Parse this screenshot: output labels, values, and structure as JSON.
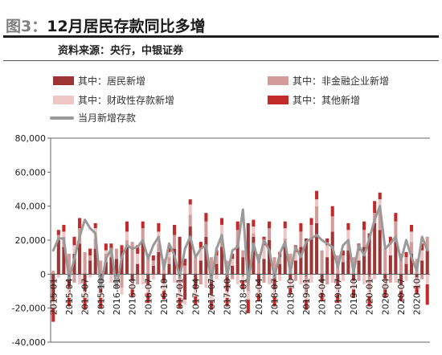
{
  "header": {
    "figure_label": "图3：",
    "title": "12月居民存款同比多增",
    "source": "资料来源：央行，中银证券"
  },
  "legend": [
    {
      "label": "其中：居民新增",
      "color": "#9e3434"
    },
    {
      "label": "其中：非金融企业新增",
      "color": "#d49b9b"
    },
    {
      "label": "其中：财政性存款新增",
      "color": "#efc6c6"
    },
    {
      "label": "其中：其他新增",
      "color": "#c22a2a"
    },
    {
      "label": "当月新增存款",
      "color": "#9a9a9a"
    }
  ],
  "chart_data": {
    "type": "bar",
    "stacked": true,
    "overlay_line_series": "当月新增存款",
    "ylim": [
      -40000,
      80000
    ],
    "yticks": [
      -40000,
      -20000,
      0,
      20000,
      40000,
      60000,
      80000
    ],
    "ytick_labels": [
      "-40,000",
      "-20,000",
      "0",
      "20,000",
      "40,000",
      "60,000",
      "80,000"
    ],
    "x_tick_labels": [
      "2015-01",
      "2015-04",
      "2015-07",
      "2015-10",
      "2016-01",
      "2016-04",
      "2016-07",
      "2016-10",
      "2017-01",
      "2017-04",
      "2017-07",
      "2017-10",
      "2018-01",
      "2018-04",
      "2018-07",
      "2018-10",
      "2019-01",
      "2019-04",
      "2019-07",
      "2019-10",
      "2020-01",
      "2020-04",
      "2020-07",
      "2020-10"
    ],
    "categories": [
      "2015-01",
      "2015-02",
      "2015-03",
      "2015-04",
      "2015-05",
      "2015-06",
      "2015-07",
      "2015-08",
      "2015-09",
      "2015-10",
      "2015-11",
      "2015-12",
      "2016-01",
      "2016-02",
      "2016-03",
      "2016-04",
      "2016-05",
      "2016-06",
      "2016-07",
      "2016-08",
      "2016-09",
      "2016-10",
      "2016-11",
      "2016-12",
      "2017-01",
      "2017-02",
      "2017-03",
      "2017-04",
      "2017-05",
      "2017-06",
      "2017-07",
      "2017-08",
      "2017-09",
      "2017-10",
      "2017-11",
      "2017-12",
      "2018-01",
      "2018-02",
      "2018-03",
      "2018-04",
      "2018-05",
      "2018-06",
      "2018-07",
      "2018-08",
      "2018-09",
      "2018-10",
      "2018-11",
      "2018-12",
      "2019-01",
      "2019-02",
      "2019-03",
      "2019-04",
      "2019-05",
      "2019-06",
      "2019-07",
      "2019-08",
      "2019-09",
      "2019-10",
      "2019-11",
      "2019-12",
      "2020-01",
      "2020-02",
      "2020-03",
      "2020-04",
      "2020-05",
      "2020-06",
      "2020-07",
      "2020-08",
      "2020-09",
      "2020-10",
      "2020-11",
      "2020-12"
    ],
    "series": [
      {
        "name": "其中：居民新增",
        "color": "#9e3434",
        "values": [
          -16000,
          20000,
          16000,
          -8000,
          12000,
          18000,
          -10000,
          8000,
          15000,
          -11000,
          7000,
          10000,
          9000,
          14000,
          17000,
          -4000,
          6000,
          19000,
          -6000,
          5000,
          13000,
          -5000,
          6000,
          15000,
          22000,
          -15000,
          28000,
          -9000,
          8000,
          22000,
          -12000,
          6000,
          16000,
          -10000,
          5000,
          17000,
          10000,
          30000,
          22000,
          -7000,
          9000,
          20000,
          -9000,
          6000,
          16000,
          -3000,
          8000,
          16000,
          21000,
          21000,
          30000,
          -5000,
          10000,
          25000,
          -7000,
          7000,
          14000,
          -4000,
          8000,
          16000,
          24000,
          30000,
          26000,
          -3000,
          11000,
          19000,
          -6000,
          6000,
          12000,
          -2000,
          8000,
          14000
        ]
      },
      {
        "name": "其中：非金融企业新增",
        "color": "#d49b9b",
        "values": [
          2000,
          3000,
          6000,
          12000,
          -5000,
          9000,
          13000,
          3000,
          6000,
          8000,
          5000,
          3000,
          6000,
          -8000,
          3000,
          19000,
          -6000,
          8000,
          12000,
          3000,
          5000,
          9000,
          4000,
          8000,
          -10000,
          5000,
          7000,
          10000,
          -6000,
          9000,
          10000,
          5000,
          6000,
          8000,
          -3000,
          9000,
          4000,
          -10000,
          2000,
          12000,
          -5000,
          7000,
          10000,
          4000,
          5000,
          12000,
          -4000,
          9000,
          -12000,
          8000,
          10000,
          14000,
          -6000,
          9000,
          11000,
          4000,
          6000,
          10000,
          -4000,
          10000,
          -9000,
          6000,
          13000,
          15000,
          -5000,
          12000,
          12000,
          4000,
          7000,
          9000,
          -3000,
          8000
        ]
      },
      {
        "name": "其中：财政性存款新增",
        "color": "#efc6c6",
        "values": [
          -4000,
          -2000,
          3000,
          -6000,
          5000,
          -6000,
          -4000,
          -2000,
          6000,
          -3000,
          2000,
          -5000,
          -3000,
          -4000,
          5000,
          -5000,
          6000,
          -6000,
          -5000,
          -3000,
          7000,
          -5000,
          3000,
          -5000,
          -4000,
          -3000,
          6000,
          -4000,
          7000,
          -8000,
          -4000,
          -3000,
          7000,
          -4000,
          4000,
          -6000,
          -4000,
          -5000,
          4000,
          -5000,
          8000,
          -6000,
          -4000,
          -4000,
          6000,
          -5000,
          5000,
          -6000,
          -3000,
          -5000,
          4000,
          -6000,
          7000,
          -5000,
          -5000,
          -4000,
          6000,
          -5000,
          6000,
          -6000,
          -4000,
          -3000,
          5000,
          -6000,
          7000,
          -5000,
          -4000,
          -4000,
          6000,
          -5000,
          6000,
          -6000
        ]
      },
      {
        "name": "其中：其他新增",
        "color": "#c22a2a",
        "values": [
          -8000,
          3000,
          4000,
          -5000,
          5000,
          6000,
          -7000,
          4000,
          3000,
          -6000,
          4000,
          5000,
          -5000,
          3000,
          6000,
          -4000,
          5000,
          4000,
          -6000,
          3000,
          5000,
          -5000,
          3000,
          6000,
          -6000,
          4000,
          3000,
          -5000,
          4000,
          5000,
          -5000,
          3000,
          4000,
          -5000,
          3000,
          5000,
          -5000,
          -8000,
          4000,
          -4000,
          5000,
          4000,
          -6000,
          3000,
          4000,
          -4000,
          4000,
          5000,
          -6000,
          4000,
          5000,
          -5000,
          4000,
          6000,
          -5000,
          3000,
          4000,
          -5000,
          4000,
          5000,
          -6000,
          7000,
          4000,
          -5000,
          4000,
          5000,
          -6000,
          3000,
          4000,
          -5000,
          4000,
          -12000
        ]
      },
      {
        "name": "当月新增存款",
        "color": "#9a9a9a",
        "line": true,
        "values": [
          14000,
          21000,
          21000,
          -3000,
          9000,
          22000,
          32000,
          27000,
          24000,
          -8000,
          9000,
          15000,
          -8000,
          10000,
          17000,
          15000,
          16000,
          20000,
          9000,
          17000,
          22000,
          3000,
          18000,
          11000,
          -2000,
          15000,
          22000,
          10000,
          15000,
          17000,
          -4000,
          15000,
          23000,
          -1000,
          14000,
          16000,
          38000,
          -6000,
          18000,
          7000,
          20000,
          14000,
          -2000,
          12000,
          19000,
          1000,
          16000,
          10000,
          19000,
          21000,
          23000,
          20000,
          18000,
          16000,
          4000,
          17000,
          20000,
          1000,
          17000,
          11000,
          21000,
          32000,
          40000,
          15000,
          18000,
          22000,
          8000,
          20000,
          10000,
          2000,
          22000,
          14000
        ]
      }
    ]
  }
}
